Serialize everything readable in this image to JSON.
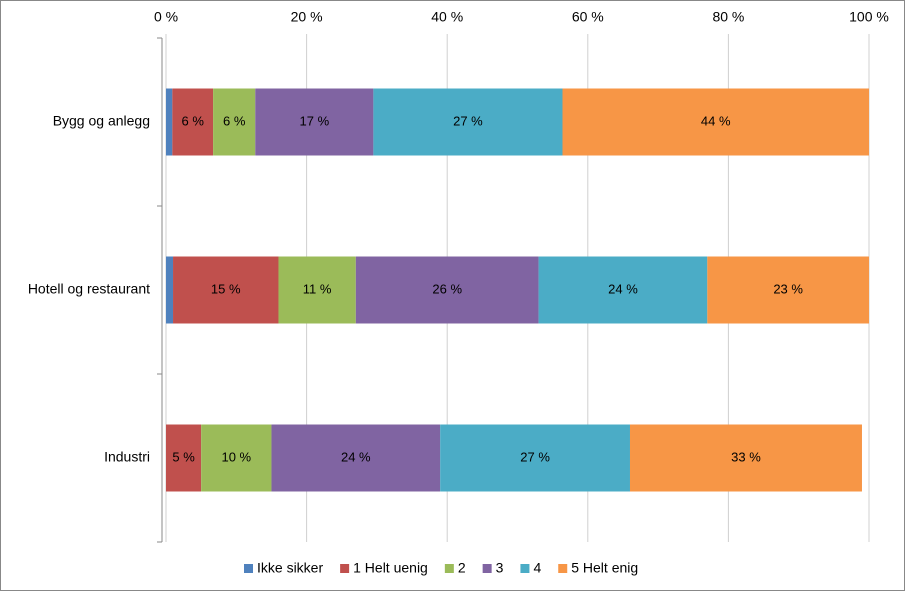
{
  "chart_data": {
    "type": "stacked-barh",
    "categories": [
      "Bygg og anlegg",
      "Hotell og restaurant",
      "Industri"
    ],
    "series": [
      {
        "name": "Ikke sikker",
        "color": "#4f81bd",
        "values": [
          0.9,
          1,
          0
        ],
        "value_labels": [
          null,
          null,
          null
        ]
      },
      {
        "name": "1 Helt uenig",
        "color": "#c0504d",
        "values": [
          5.8,
          15,
          5
        ],
        "value_labels": [
          "6 %",
          "15 %",
          "5 %"
        ]
      },
      {
        "name": "2",
        "color": "#9bbb59",
        "values": [
          6.0,
          11,
          10
        ],
        "value_labels": [
          "6 %",
          "11 %",
          "10 %"
        ]
      },
      {
        "name": "3",
        "color": "#8064a2",
        "values": [
          16.8,
          26,
          24
        ],
        "value_labels": [
          "17 %",
          "26 %",
          "24 %"
        ]
      },
      {
        "name": "4",
        "color": "#4bacc6",
        "values": [
          26.9,
          24,
          27
        ],
        "value_labels": [
          "27 %",
          "24 %",
          "27 %"
        ]
      },
      {
        "name": "5 Helt enig",
        "color": "#f79646",
        "values": [
          43.6,
          23,
          33
        ],
        "value_labels": [
          "44 %",
          "23 %",
          "33 %"
        ]
      }
    ],
    "xlim": [
      0,
      100
    ],
    "xticks": [
      {
        "value": 0,
        "label": "0 %"
      },
      {
        "value": 20,
        "label": "20 %"
      },
      {
        "value": 40,
        "label": "40 %"
      },
      {
        "value": 60,
        "label": "60 %"
      },
      {
        "value": 80,
        "label": "80 %"
      },
      {
        "value": 100,
        "label": "100 %"
      }
    ],
    "grid": true,
    "legend": "bottom"
  }
}
